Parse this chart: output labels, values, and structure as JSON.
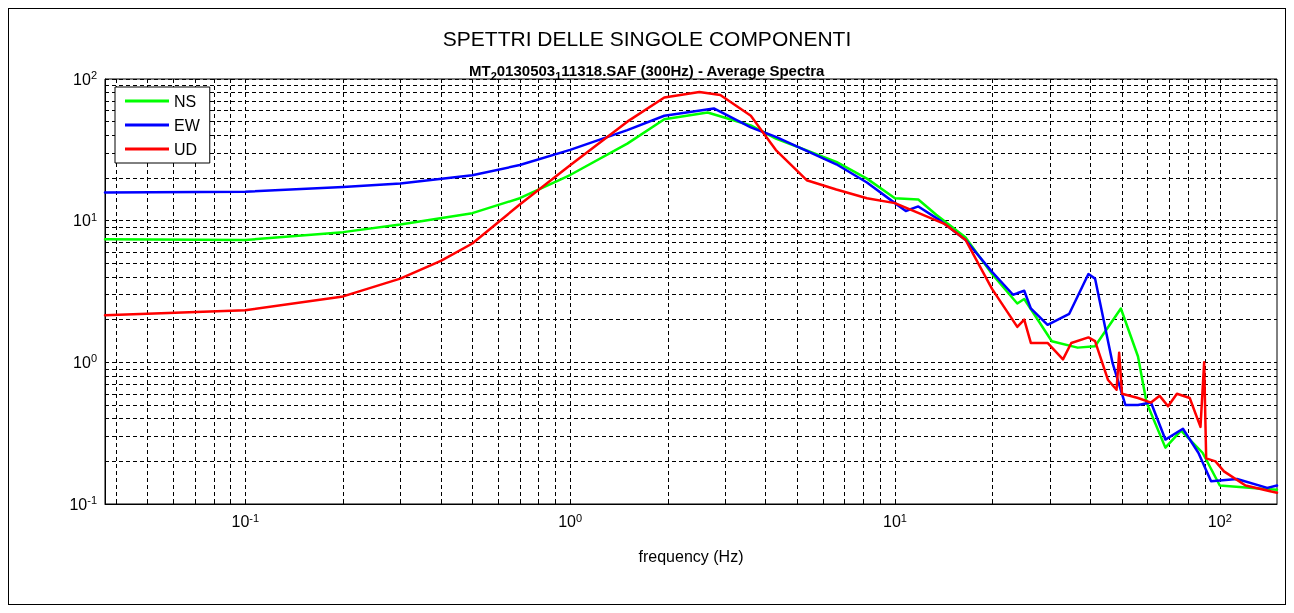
{
  "chart_data": {
    "type": "line",
    "title": "SPETTRI DELLE SINGOLE COMPONENTI",
    "subtitle": "MT$_{2}$0130503$_{1}$11318.SAF (300Hz) - Average Spectra",
    "xlabel": "frequency (Hz)",
    "log": "xy",
    "grid": true,
    "legend": "top left",
    "marker": "none",
    "line_style": "solid",
    "xlim": [
      0.037,
      150
    ],
    "ylim": [
      0.1,
      100
    ],
    "xticks": [
      {
        "value": 0.04,
        "label": null
      },
      {
        "value": 0.05,
        "label": null
      },
      {
        "value": 0.06,
        "label": null
      },
      {
        "value": 0.07,
        "label": null
      },
      {
        "value": 0.08,
        "label": null
      },
      {
        "value": 0.09,
        "label": null
      },
      {
        "value": 0.1,
        "label": "10$^{-1}$"
      },
      {
        "value": 0.2,
        "label": null
      },
      {
        "value": 0.3,
        "label": null
      },
      {
        "value": 0.4,
        "label": null
      },
      {
        "value": 0.5,
        "label": null
      },
      {
        "value": 0.6,
        "label": null
      },
      {
        "value": 0.7,
        "label": null
      },
      {
        "value": 0.8,
        "label": null
      },
      {
        "value": 0.9,
        "label": null
      },
      {
        "value": 1,
        "label": "10$^{0}$"
      },
      {
        "value": 2,
        "label": null
      },
      {
        "value": 3,
        "label": null
      },
      {
        "value": 4,
        "label": null
      },
      {
        "value": 5,
        "label": null
      },
      {
        "value": 6,
        "label": null
      },
      {
        "value": 7,
        "label": null
      },
      {
        "value": 8,
        "label": null
      },
      {
        "value": 9,
        "label": null
      },
      {
        "value": 10,
        "label": "10$^{1}$"
      },
      {
        "value": 20,
        "label": null
      },
      {
        "value": 30,
        "label": null
      },
      {
        "value": 40,
        "label": null
      },
      {
        "value": 50,
        "label": null
      },
      {
        "value": 60,
        "label": null
      },
      {
        "value": 70,
        "label": null
      },
      {
        "value": 80,
        "label": null
      },
      {
        "value": 90,
        "label": null
      },
      {
        "value": 100,
        "label": "10$^{2}$"
      }
    ],
    "yticks": [
      {
        "value": 0.1,
        "label": "10$^{-1}$"
      },
      {
        "value": 0.2,
        "label": null
      },
      {
        "value": 0.3,
        "label": null
      },
      {
        "value": 0.4,
        "label": null
      },
      {
        "value": 0.5,
        "label": null
      },
      {
        "value": 0.6,
        "label": null
      },
      {
        "value": 0.7,
        "label": null
      },
      {
        "value": 0.8,
        "label": null
      },
      {
        "value": 0.9,
        "label": null
      },
      {
        "value": 1,
        "label": "10$^{0}$"
      },
      {
        "value": 2,
        "label": null
      },
      {
        "value": 3,
        "label": null
      },
      {
        "value": 4,
        "label": null
      },
      {
        "value": 5,
        "label": null
      },
      {
        "value": 6,
        "label": null
      },
      {
        "value": 7,
        "label": null
      },
      {
        "value": 8,
        "label": null
      },
      {
        "value": 9,
        "label": null
      },
      {
        "value": 10,
        "label": "10$^{1}$"
      },
      {
        "value": 20,
        "label": null
      },
      {
        "value": 30,
        "label": null
      },
      {
        "value": 40,
        "label": null
      },
      {
        "value": 50,
        "label": null
      },
      {
        "value": 60,
        "label": null
      },
      {
        "value": 70,
        "label": null
      },
      {
        "value": 80,
        "label": null
      },
      {
        "value": 90,
        "label": null
      },
      {
        "value": 100,
        "label": "10$^{2}$"
      }
    ],
    "series": [
      {
        "name": "NS",
        "color": "#00ff00",
        "x": [
          0.037,
          0.1,
          0.2,
          0.3,
          0.5,
          0.7,
          1,
          1.5,
          1.95,
          2.65,
          3.6,
          4.3,
          6.6,
          8.2,
          10,
          11.8,
          13.4,
          16.5,
          19.9,
          23.8,
          25,
          30.4,
          36.5,
          41.3,
          49.6,
          56,
          59.5,
          68,
          76,
          88.5,
          100,
          150
        ],
        "values": [
          7.4,
          7.3,
          8.3,
          9.4,
          11.3,
          14.4,
          21,
          35,
          52,
          58,
          47,
          38,
          26,
          19.8,
          14.4,
          14.1,
          11,
          7.6,
          4.2,
          2.6,
          2.8,
          1.41,
          1.27,
          1.3,
          2.4,
          1.1,
          0.52,
          0.25,
          0.33,
          0.23,
          0.135,
          0.126
        ]
      },
      {
        "name": "EW",
        "color": "#0000ff",
        "x": [
          0.037,
          0.1,
          0.2,
          0.3,
          0.5,
          0.7,
          1,
          1.5,
          1.95,
          2.77,
          3.6,
          4.3,
          6.6,
          8.2,
          10,
          10.8,
          11.8,
          13.8,
          16.5,
          19.9,
          23.1,
          25,
          26.2,
          29.5,
          34.4,
          39.4,
          41.3,
          46.7,
          51.2,
          56,
          61.4,
          68,
          77,
          85.9,
          94,
          113,
          140,
          150
        ],
        "values": [
          15.8,
          16,
          17.3,
          18.3,
          20.9,
          24.7,
          31.6,
          43.6,
          55,
          62,
          45.5,
          39,
          25,
          18.6,
          13.3,
          11.7,
          12.6,
          10,
          7.3,
          4.35,
          3,
          3.2,
          2.4,
          1.84,
          2.2,
          4.2,
          3.9,
          1,
          0.5,
          0.5,
          0.52,
          0.285,
          0.34,
          0.23,
          0.145,
          0.15,
          0.13,
          0.135
        ]
      },
      {
        "name": "UD",
        "color": "#ff0000",
        "x": [
          0.037,
          0.1,
          0.2,
          0.3,
          0.4,
          0.5,
          0.7,
          1,
          1.5,
          1.95,
          2.5,
          2.9,
          3.6,
          4.3,
          5.35,
          6.6,
          8.2,
          10,
          12.2,
          14.2,
          16.5,
          19.9,
          23.8,
          25,
          26.2,
          29.5,
          32.9,
          34.9,
          39.4,
          41.3,
          45.3,
          48.1,
          49,
          50,
          56,
          61.4,
          65.3,
          69.3,
          73.8,
          80.8,
          87.2,
          89.5,
          90.8,
          97,
          103,
          120,
          150
        ],
        "values": [
          2.15,
          2.33,
          2.92,
          3.9,
          5.2,
          6.9,
          13,
          24.6,
          50,
          74,
          81,
          77,
          55,
          31.5,
          19.3,
          16.6,
          14.4,
          13.3,
          11,
          9.5,
          7.3,
          3.3,
          1.78,
          2,
          1.37,
          1.37,
          1.05,
          1.37,
          1.5,
          1.41,
          0.75,
          0.64,
          1.17,
          0.6,
          0.56,
          0.52,
          0.58,
          0.49,
          0.6,
          0.56,
          0.35,
          1,
          0.21,
          0.2,
          0.17,
          0.135,
          0.12
        ]
      }
    ]
  }
}
